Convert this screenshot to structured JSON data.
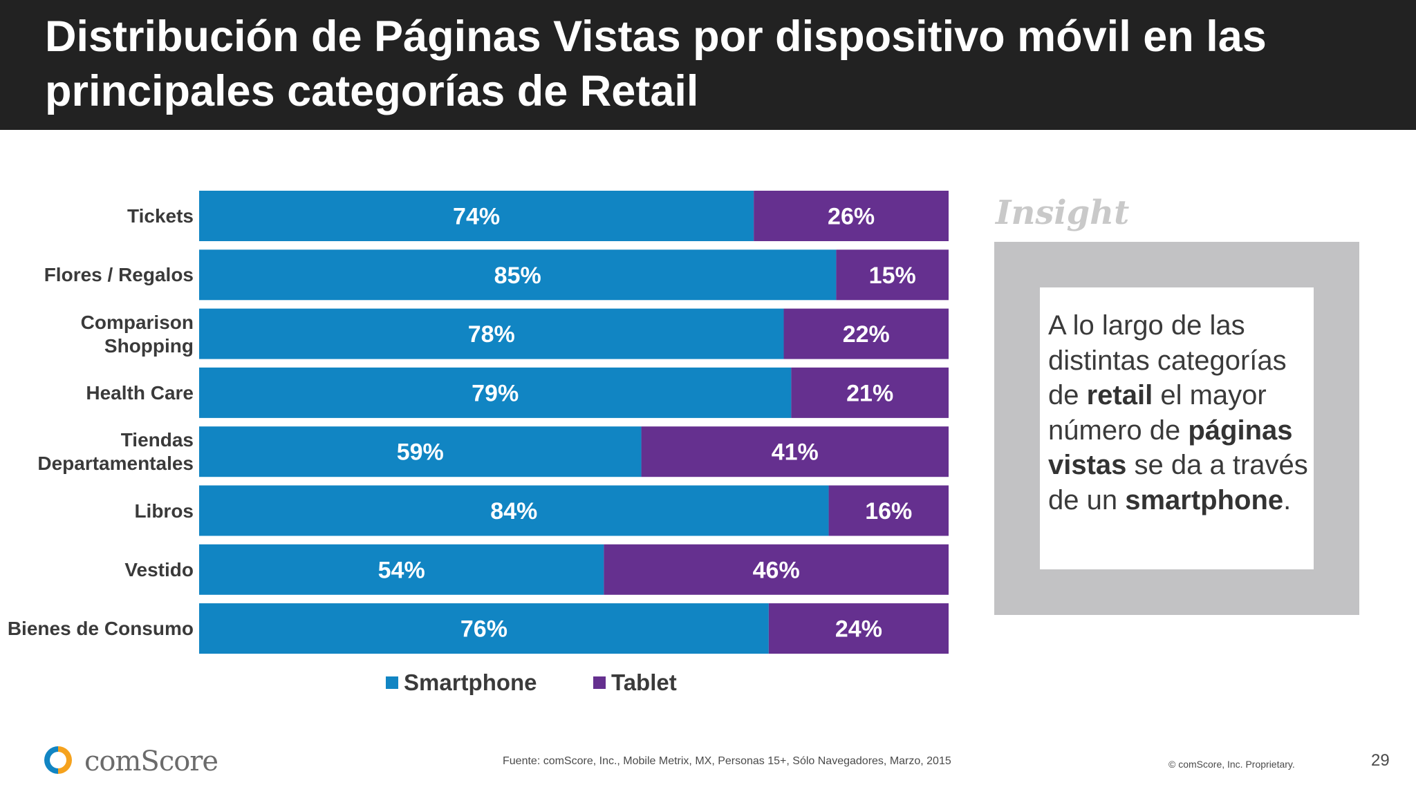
{
  "title": "Distribución de Páginas Vistas por dispositivo móvil en las principales categorías de Retail",
  "chart_data": {
    "type": "bar",
    "orientation": "horizontal",
    "stacked": true,
    "percent_stacked": true,
    "categories": [
      "Tickets",
      "Flores / Regalos",
      "Comparison Shopping",
      "Health Care",
      "Tiendas Departamentales",
      "Libros",
      "Vestido",
      "Bienes de Consumo"
    ],
    "series": [
      {
        "name": "Smartphone",
        "color": "#1185c3",
        "values": [
          74,
          85,
          78,
          79,
          59,
          84,
          54,
          76
        ]
      },
      {
        "name": "Tablet",
        "color": "#65308f",
        "values": [
          26,
          15,
          22,
          21,
          41,
          16,
          46,
          24
        ]
      }
    ],
    "value_suffix": "%",
    "xlim": [
      0,
      100
    ],
    "grid": false,
    "legend_position": "bottom"
  },
  "insight": {
    "heading": "Insight",
    "body_html": "A lo largo de las distintas categorías de <b>retail</b> el mayor número de <b>páginas vistas</b> se da a través de un <b>smartphone</b>."
  },
  "footer": {
    "logo_text": "comScore",
    "source": "Fuente: comScore, Inc., Mobile Metrix, MX, Personas 15+, Sólo Navegadores, Marzo, 2015",
    "copyright": "© comScore, Inc. Proprietary.",
    "page_number": "29"
  }
}
